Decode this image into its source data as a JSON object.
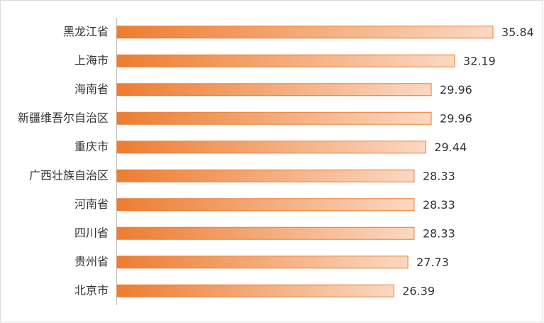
{
  "chart_data": {
    "type": "bar",
    "orientation": "horizontal",
    "categories": [
      "黑龙江省",
      "上海市",
      "海南省",
      "新疆维吾尔自治区",
      "重庆市",
      "广西壮族自治区",
      "河南省",
      "四川省",
      "贵州省",
      "北京市"
    ],
    "values": [
      35.84,
      32.19,
      29.96,
      29.96,
      29.44,
      28.33,
      28.33,
      28.33,
      27.73,
      26.39
    ],
    "color": "#ed7d31"
  }
}
